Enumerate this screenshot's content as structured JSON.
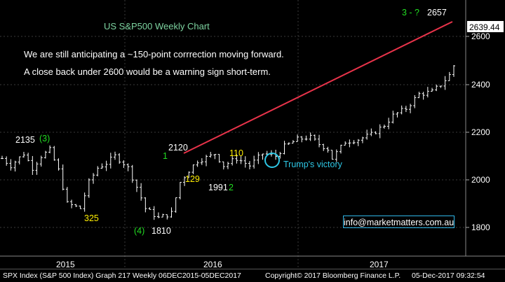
{
  "title": "US S&P500 Weekly Chart",
  "notes": [
    "We are still anticipating a ~150-point corrrection moving forward.",
    "A close back under 2600 would be a warning sign short-term."
  ],
  "email": "info@marketmatters.com.au",
  "footer": {
    "left": "SPX Index (S&P 500 Index) Graph 217  Weekly 06DEC2015-05DEC2017",
    "middle": "Copyright© 2017 Bloomberg Finance L.P.",
    "right": "05-Dec-2017 09:32:54"
  },
  "colors": {
    "background": "#000000",
    "candles": "#ffffff",
    "trendline": "#e8334a",
    "wave_labels_green": "#22dd22",
    "labels_yellow": "#ffee00",
    "annotation_cyan": "#2ec8e6",
    "title_green": "#7dd3a0"
  },
  "chart_data": {
    "type": "line",
    "subtype": "weekly price bars",
    "title": "US S&P500 Weekly Chart",
    "y_axis": {
      "ticks": [
        1800,
        2000,
        2200,
        2400,
        2600
      ],
      "range": [
        1760,
        2700
      ],
      "side": "right",
      "gridlines": true
    },
    "x_axis": {
      "ticks": [
        "2015",
        "2016",
        "2017"
      ]
    },
    "last_price": "2639.44",
    "series": [
      {
        "x": [
          "2015-12-04",
          "2015-12-18",
          "2016-01-08",
          "2016-01-22",
          "2016-02-05",
          "2016-02-19",
          "2016-03-04",
          "2016-03-18",
          "2016-04-08",
          "2016-04-22",
          "2016-05-06",
          "2016-05-20",
          "2016-06-03",
          "2016-06-17",
          "2016-06-24",
          "2016-07-08",
          "2016-07-22",
          "2016-08-12",
          "2016-09-02",
          "2016-09-16",
          "2016-09-30",
          "2016-10-14",
          "2016-11-04",
          "2016-11-11",
          "2016-11-25",
          "2016-12-16",
          "2017-01-06",
          "2017-01-27",
          "2017-02-17",
          "2017-03-03",
          "2017-03-24",
          "2017-04-13",
          "2017-04-28",
          "2017-05-12",
          "2017-05-19",
          "2017-06-09",
          "2017-06-30",
          "2017-07-21",
          "2017-08-11",
          "2017-08-25",
          "2017-09-15",
          "2017-10-06",
          "2017-10-27",
          "2017-11-10",
          "2017-11-24",
          "2017-12-01"
        ],
        "values": [
          2090,
          2060,
          2110,
          2050,
          2100,
          2125,
          2040,
          1900,
          1880,
          1990,
          2050,
          2070,
          2100,
          2070,
          2050,
          1970,
          1880,
          1840,
          1860,
          1990,
          2040,
          2080,
          2100,
          2110,
          2060,
          2090,
          2060,
          2110,
          2100,
          2140,
          2170,
          2180,
          2150,
          2130,
          2090,
          2160,
          2170,
          2190,
          2230,
          2270,
          2300,
          2360,
          2370,
          2400,
          2440,
          2480
        ]
      }
    ],
    "annotations": [
      {
        "text": "2135",
        "color": "white"
      },
      {
        "text": "(3)",
        "color": "green"
      },
      {
        "text": "325",
        "color": "yellow"
      },
      {
        "text": "(4)",
        "color": "green"
      },
      {
        "text": "1810",
        "color": "white"
      },
      {
        "text": "1",
        "color": "green"
      },
      {
        "text": "2120",
        "color": "white"
      },
      {
        "text": "129",
        "color": "yellow"
      },
      {
        "text": "1991",
        "color": "white"
      },
      {
        "text": "2",
        "color": "green"
      },
      {
        "text": "110",
        "color": "yellow"
      },
      {
        "text": "Trump's victory",
        "color": "cyan"
      },
      {
        "text": "3 - ?",
        "color": "green"
      },
      {
        "text": "2657",
        "color": "white"
      }
    ]
  }
}
